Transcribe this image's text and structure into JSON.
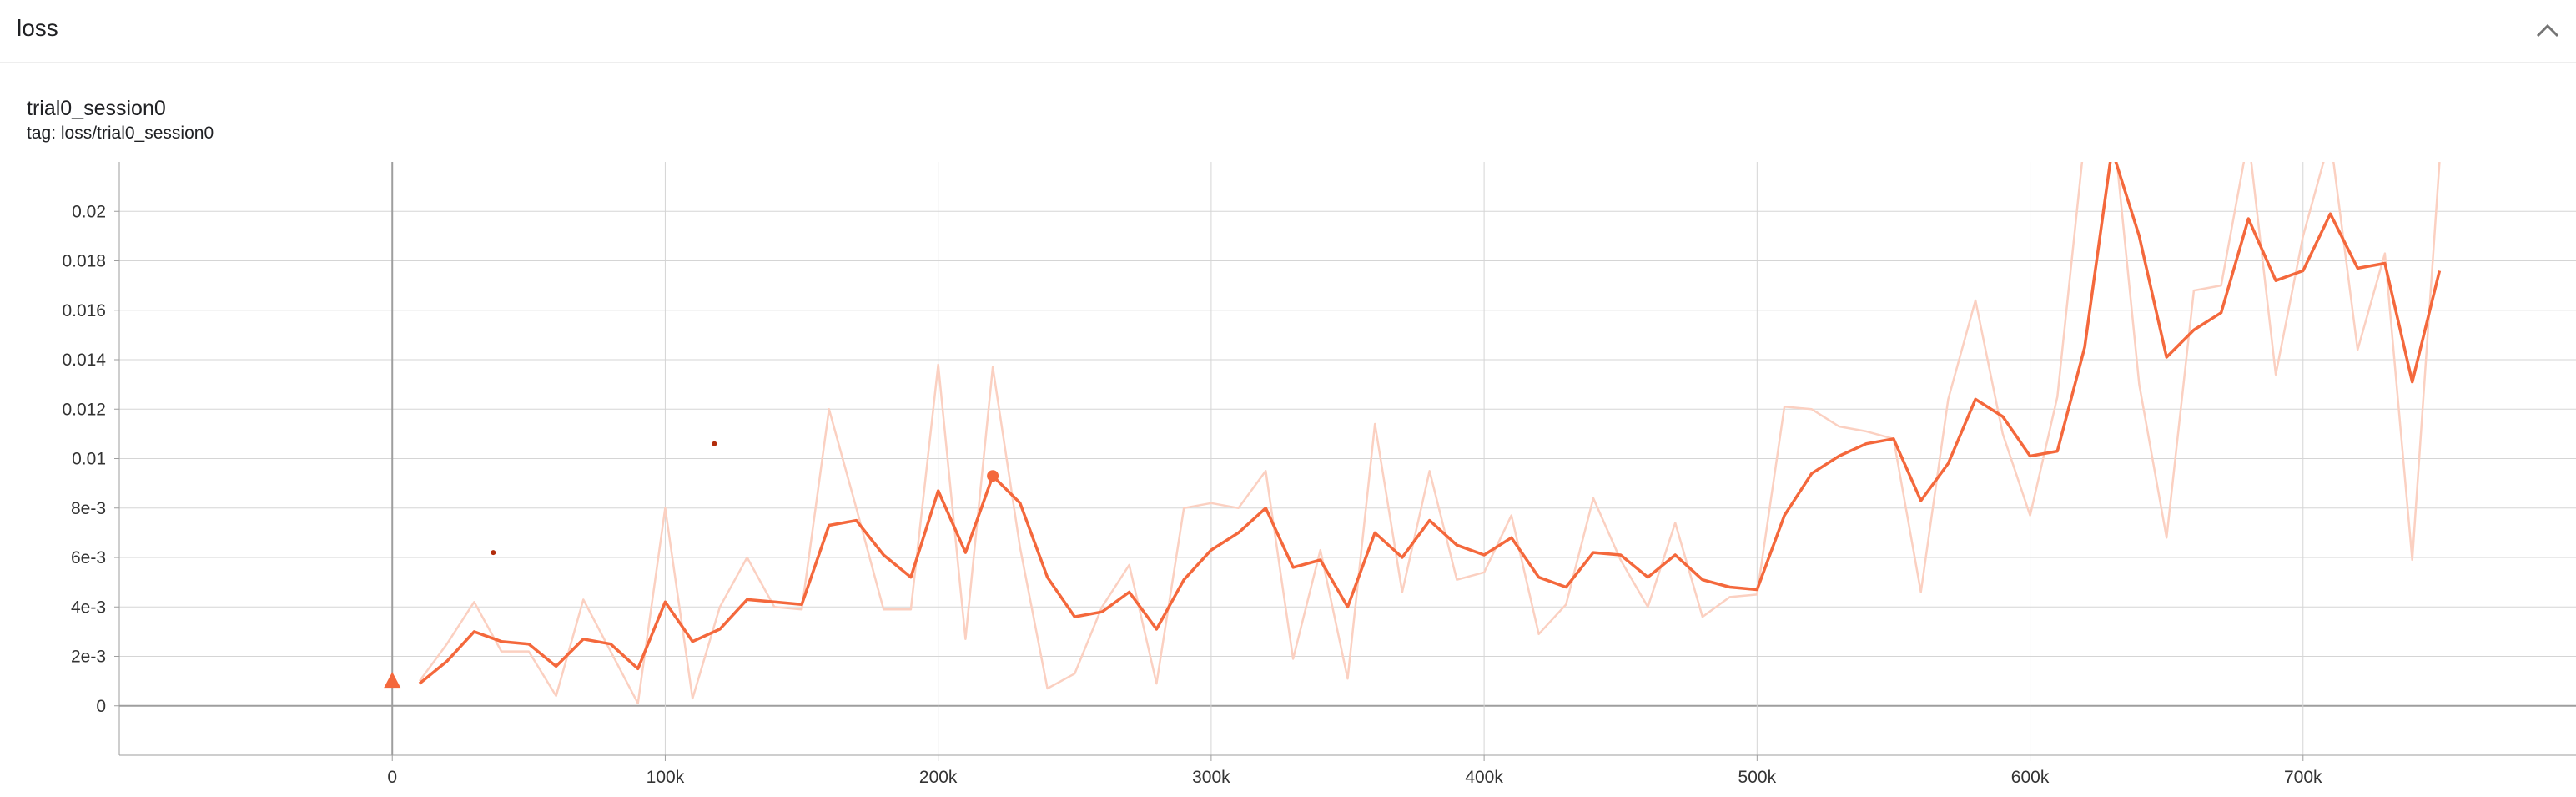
{
  "section": {
    "title": "loss",
    "collapse_icon": "chevron-up-icon"
  },
  "card": {
    "run": "trial0_session0",
    "tag": "tag: loss/trial0_session0"
  },
  "colors": {
    "smoothed": "#f4683c",
    "raw": "#fbd0c1",
    "grid": "#d5d5d5",
    "axis": "#9e9e9e",
    "marker": "#f4683c",
    "outlier": "#b22d0c"
  },
  "chart_data": {
    "type": "line",
    "title": "",
    "xlabel": "",
    "ylabel": "",
    "xlim": [
      -100000,
      800000
    ],
    "ylim": [
      -0.002,
      0.022
    ],
    "x_ticks": [
      0,
      100000,
      200000,
      300000,
      400000,
      500000,
      600000,
      700000
    ],
    "x_tick_labels": [
      "0",
      "100k",
      "200k",
      "300k",
      "400k",
      "500k",
      "600k",
      "700k"
    ],
    "y_ticks": [
      0,
      0.002,
      0.004,
      0.006,
      0.008,
      0.01,
      0.012,
      0.014,
      0.016,
      0.018,
      0.02
    ],
    "y_tick_labels": [
      "0",
      "2e-3",
      "4e-3",
      "6e-3",
      "8e-3",
      "0.01",
      "0.012",
      "0.014",
      "0.016",
      "0.018",
      "0.02"
    ],
    "grid": true,
    "series": [
      {
        "role": "raw",
        "x": [
          10000,
          20000,
          30000,
          40000,
          50000,
          60000,
          70000,
          80000,
          90000,
          100000,
          110000,
          120000,
          130000,
          140000,
          150000,
          160000,
          170000,
          180000,
          190000,
          200000,
          210000,
          220000,
          230000,
          240000,
          250000,
          260000,
          270000,
          280000,
          290000,
          300000,
          310000,
          320000,
          330000,
          340000,
          350000,
          360000,
          370000,
          380000,
          390000,
          400000,
          410000,
          420000,
          430000,
          440000,
          450000,
          460000,
          470000,
          480000,
          490000,
          500000,
          510000,
          520000,
          530000,
          540000,
          550000,
          560000,
          570000,
          580000,
          590000,
          600000,
          610000,
          620000,
          630000,
          640000,
          650000,
          660000,
          670000,
          680000,
          690000,
          700000,
          710000,
          720000,
          730000,
          740000,
          750000
        ],
        "y": [
          0.001,
          0.0025,
          0.0042,
          0.0022,
          0.0022,
          0.0004,
          0.0043,
          0.0022,
          0.0001,
          0.008,
          0.0003,
          0.004,
          0.006,
          0.004,
          0.0039,
          0.012,
          0.008,
          0.0039,
          0.0039,
          0.0138,
          0.0027,
          0.0137,
          0.0064,
          0.0007,
          0.0013,
          0.004,
          0.0057,
          0.0009,
          0.008,
          0.0082,
          0.008,
          0.0095,
          0.0019,
          0.0063,
          0.0011,
          0.0114,
          0.0046,
          0.0095,
          0.0051,
          0.0054,
          0.0077,
          0.0029,
          0.0041,
          0.0084,
          0.0059,
          0.004,
          0.0074,
          0.0036,
          0.0044,
          0.0045,
          0.0121,
          0.012,
          0.0113,
          0.0111,
          0.0108,
          0.0046,
          0.0124,
          0.0164,
          0.011,
          0.0077,
          0.0125,
          0.023,
          0.024,
          0.013,
          0.0068,
          0.0168,
          0.017,
          0.023,
          0.0134,
          0.019,
          0.023,
          0.0144,
          0.0183,
          0.0059,
          0.022
        ]
      },
      {
        "role": "smoothed",
        "x": [
          10000,
          20000,
          30000,
          40000,
          50000,
          60000,
          70000,
          80000,
          90000,
          100000,
          110000,
          120000,
          130000,
          140000,
          150000,
          160000,
          170000,
          180000,
          190000,
          200000,
          210000,
          220000,
          230000,
          240000,
          250000,
          260000,
          270000,
          280000,
          290000,
          300000,
          310000,
          320000,
          330000,
          340000,
          350000,
          360000,
          370000,
          380000,
          390000,
          400000,
          410000,
          420000,
          430000,
          440000,
          450000,
          460000,
          470000,
          480000,
          490000,
          500000,
          510000,
          520000,
          530000,
          540000,
          550000,
          560000,
          570000,
          580000,
          590000,
          600000,
          610000,
          620000,
          630000,
          640000,
          650000,
          660000,
          670000,
          680000,
          690000,
          700000,
          710000,
          720000,
          730000,
          740000,
          750000
        ],
        "y": [
          0.0009,
          0.0018,
          0.003,
          0.0026,
          0.0025,
          0.0016,
          0.0027,
          0.0025,
          0.0015,
          0.0042,
          0.0026,
          0.0031,
          0.0043,
          0.0042,
          0.0041,
          0.0073,
          0.0075,
          0.0061,
          0.0052,
          0.0087,
          0.0062,
          0.0093,
          0.0082,
          0.0052,
          0.0036,
          0.0038,
          0.0046,
          0.0031,
          0.0051,
          0.0063,
          0.007,
          0.008,
          0.0056,
          0.0059,
          0.004,
          0.007,
          0.006,
          0.0075,
          0.0065,
          0.0061,
          0.0068,
          0.0052,
          0.0048,
          0.0062,
          0.0061,
          0.0052,
          0.0061,
          0.0051,
          0.0048,
          0.0047,
          0.0077,
          0.0094,
          0.0101,
          0.0106,
          0.0108,
          0.0083,
          0.0098,
          0.0124,
          0.0117,
          0.0101,
          0.0103,
          0.0145,
          0.0225,
          0.019,
          0.0141,
          0.0152,
          0.0159,
          0.0197,
          0.0172,
          0.0176,
          0.0199,
          0.0177,
          0.0179,
          0.0131,
          0.0176
        ]
      }
    ],
    "highlight": {
      "x": 220000,
      "y": 0.0093
    },
    "outliers": [
      {
        "x": 37000,
        "y": 0.0062
      },
      {
        "x": 118000,
        "y": 0.0106
      }
    ],
    "origin_marker": {
      "x": 0,
      "y": 0.001,
      "shape": "triangle"
    }
  }
}
